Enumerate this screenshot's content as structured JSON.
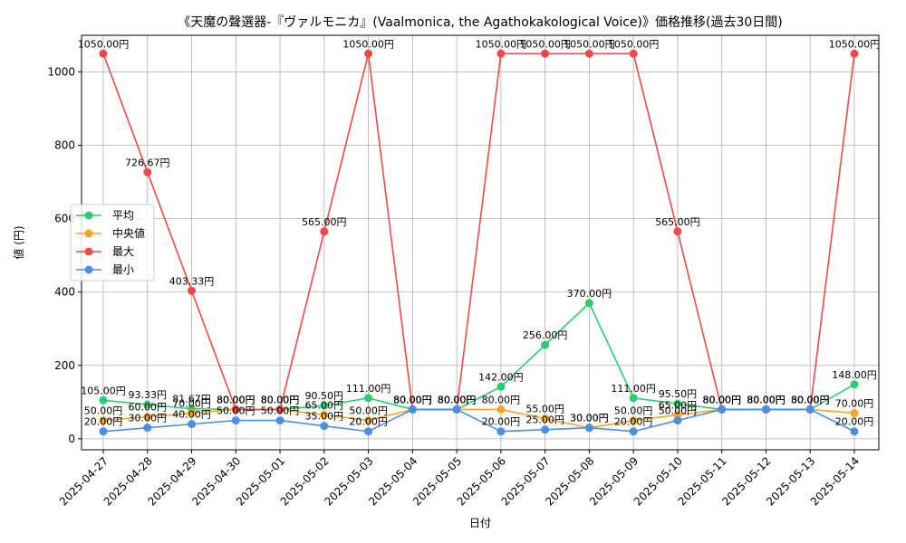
{
  "chart_data": {
    "type": "line",
    "title": "《天魔の聲選器-『ヴァルモニカ』(Vaalmonica, the Agathokakological Voice)》価格推移(過去30日間)",
    "xlabel": "日付",
    "ylabel": "値 (円)",
    "ylim": [
      -30,
      1100
    ],
    "yticks": [
      0,
      200,
      400,
      600,
      800,
      1000
    ],
    "grid": true,
    "legend_position": "center-left",
    "value_suffix": "円",
    "categories": [
      "2025-04-27",
      "2025-04-28",
      "2025-04-29",
      "2025-04-30",
      "2025-05-01",
      "2025-05-02",
      "2025-05-03",
      "2025-05-04",
      "2025-05-05",
      "2025-05-06",
      "2025-05-07",
      "2025-05-08",
      "2025-05-09",
      "2025-05-10",
      "2025-05-11",
      "2025-05-12",
      "2025-05-13",
      "2025-05-14"
    ],
    "series": [
      {
        "name": "平均",
        "color": "#2ecc71",
        "values": [
          105.0,
          93.33,
          81.67,
          80.0,
          80.0,
          90.5,
          111.0,
          80.0,
          80.0,
          142.0,
          256.0,
          370.0,
          111.0,
          95.5,
          80.0,
          80.0,
          80.0,
          148.0
        ]
      },
      {
        "name": "中央値",
        "color": "#f5a623",
        "values": [
          50.0,
          60.0,
          70.0,
          80.0,
          80.0,
          65.0,
          50.0,
          80.0,
          80.0,
          80.0,
          55.0,
          30.0,
          50.0,
          65.0,
          80.0,
          80.0,
          80.0,
          70.0
        ]
      },
      {
        "name": "最大",
        "color": "#f0494a",
        "values": [
          1050.0,
          726.67,
          403.33,
          80.0,
          80.0,
          565.0,
          1050.0,
          80.0,
          80.0,
          1050.0,
          1050.0,
          1050.0,
          1050.0,
          565.0,
          80.0,
          80.0,
          80.0,
          1050.0
        ]
      },
      {
        "name": "最小",
        "color": "#4a90e2",
        "values": [
          20.0,
          30.0,
          40.0,
          50.0,
          50.0,
          35.0,
          20.0,
          80.0,
          80.0,
          20.0,
          25.0,
          30.0,
          20.0,
          50.0,
          80.0,
          80.0,
          80.0,
          20.0
        ]
      }
    ]
  }
}
